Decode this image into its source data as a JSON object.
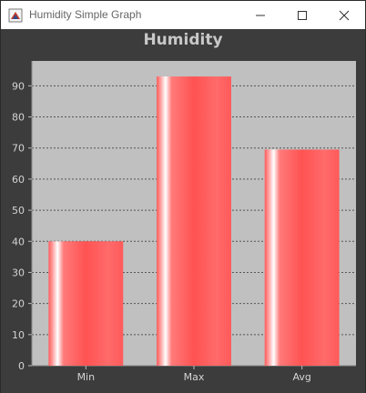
{
  "window": {
    "title": "Humidity Simple Graph",
    "icon": "java-app-icon",
    "buttons": [
      "minimize-icon",
      "maximize-icon",
      "close-icon"
    ]
  },
  "colors": {
    "background": "#3c3c3c",
    "plot_background": "#c0c0c0",
    "bar_main": "#ff5a5a",
    "bar_highlight": "#ffffff",
    "text": "#d4d4d4",
    "gridline": "#555555"
  },
  "chart_data": {
    "type": "bar",
    "title": "Humidity",
    "categories": [
      "Min",
      "Max",
      "Avg"
    ],
    "values": [
      40,
      93,
      69.5
    ],
    "xlabel": "",
    "ylabel": "",
    "ylim": [
      0,
      98
    ],
    "yticks": [
      0,
      10,
      20,
      30,
      40,
      50,
      60,
      70,
      80,
      90
    ],
    "grid": true,
    "legend": "none"
  }
}
